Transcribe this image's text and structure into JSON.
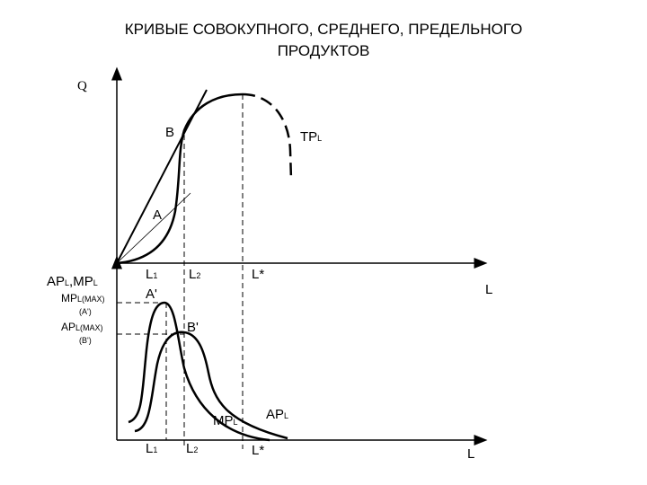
{
  "header": {
    "title_lines": [
      "КРИВЫЕ СОВОКУПНОГО, СРЕДНЕГО, ПРЕДЕЛЬНОГО",
      "ПРОДУКТОВ"
    ]
  },
  "top_graph": {
    "y_axis": "Q",
    "x_axis": "L",
    "points": {
      "b": "B",
      "a": "A"
    },
    "curve": {
      "main": "TP",
      "sub": "L"
    },
    "x_marks": [
      {
        "main": "L",
        "sub": "1"
      },
      {
        "main": "L",
        "sub": "2"
      },
      {
        "main": "L*",
        "sub": ""
      }
    ]
  },
  "bottom_graph": {
    "y_axis": {
      "main1": "AP",
      "sub1": "L",
      "main2": ",MP",
      "sub2": "L"
    },
    "x_axis": "L",
    "mp_max": {
      "main": "MP",
      "sub": "L(MAX)",
      "note": "(A')"
    },
    "ap_max": {
      "main": "AP",
      "sub": "L(MAX)",
      "note": "(B')"
    },
    "points": {
      "a": "A'",
      "b": "B'"
    },
    "curves": {
      "mp": {
        "main": "MP",
        "sub": "L"
      },
      "ap": {
        "main": "AP",
        "sub": "L"
      }
    },
    "x_marks": [
      {
        "main": "L",
        "sub": "1"
      },
      {
        "main": "L",
        "sub": "2"
      },
      {
        "main": "L*",
        "sub": ""
      }
    ]
  }
}
